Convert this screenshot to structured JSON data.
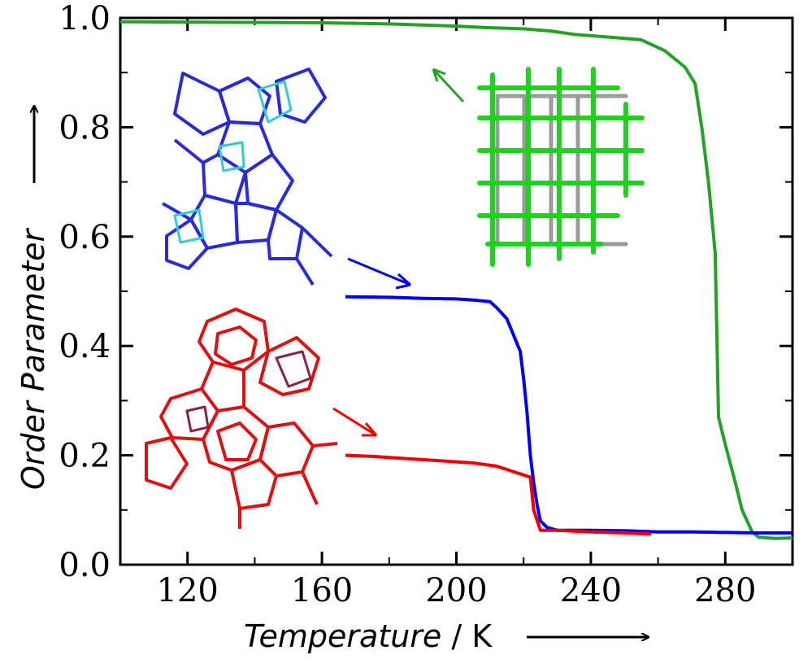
{
  "chart_data": {
    "type": "line",
    "xlabel": "Temperature / K",
    "xlabel_italic_part": "Temperature",
    "xlabel_unit_part": " / K",
    "ylabel": "Order Parameter",
    "xlim": [
      100,
      300
    ],
    "ylim": [
      0.0,
      1.0
    ],
    "x_ticks": [
      120,
      160,
      200,
      240,
      280
    ],
    "y_ticks": [
      0.0,
      0.2,
      0.4,
      0.6,
      0.8,
      1.0
    ],
    "y_tick_labels": [
      "0.0",
      "0.2",
      "0.4",
      "0.6",
      "0.8",
      "1.0"
    ],
    "grid": false,
    "series": [
      {
        "color": "#22a222",
        "points": [
          [
            100,
            0.993
          ],
          [
            130,
            0.992
          ],
          [
            160,
            0.991
          ],
          [
            180,
            0.989
          ],
          [
            200,
            0.985
          ],
          [
            210,
            0.982
          ],
          [
            220,
            0.98
          ],
          [
            228,
            0.976
          ],
          [
            235,
            0.97
          ],
          [
            245,
            0.965
          ],
          [
            255,
            0.96
          ],
          [
            262,
            0.94
          ],
          [
            268,
            0.91
          ],
          [
            271,
            0.88
          ],
          [
            273,
            0.8
          ],
          [
            275,
            0.7
          ],
          [
            277,
            0.57
          ],
          [
            278,
            0.27
          ],
          [
            280,
            0.22
          ],
          [
            283,
            0.15
          ],
          [
            285,
            0.1
          ],
          [
            288,
            0.06
          ],
          [
            290,
            0.05
          ],
          [
            295,
            0.048
          ],
          [
            300,
            0.049
          ]
        ]
      },
      {
        "color": "#0000ee",
        "points": [
          [
            167,
            0.49
          ],
          [
            180,
            0.489
          ],
          [
            190,
            0.487
          ],
          [
            200,
            0.486
          ],
          [
            205,
            0.484
          ],
          [
            210,
            0.481
          ],
          [
            212,
            0.47
          ],
          [
            215,
            0.45
          ],
          [
            217,
            0.42
          ],
          [
            219,
            0.39
          ],
          [
            220,
            0.34
          ],
          [
            221,
            0.28
          ],
          [
            222,
            0.2
          ],
          [
            223,
            0.15
          ],
          [
            224,
            0.11
          ],
          [
            225,
            0.08
          ],
          [
            227,
            0.068
          ],
          [
            230,
            0.063
          ],
          [
            240,
            0.063
          ],
          [
            250,
            0.062
          ],
          [
            260,
            0.06
          ],
          [
            270,
            0.06
          ],
          [
            280,
            0.059
          ],
          [
            290,
            0.058
          ],
          [
            300,
            0.058
          ]
        ]
      },
      {
        "color": "#ee0000",
        "points": [
          [
            167,
            0.2
          ],
          [
            175,
            0.198
          ],
          [
            185,
            0.194
          ],
          [
            195,
            0.19
          ],
          [
            205,
            0.186
          ],
          [
            212,
            0.18
          ],
          [
            216,
            0.172
          ],
          [
            222,
            0.16
          ],
          [
            223,
            0.1
          ],
          [
            225,
            0.063
          ],
          [
            230,
            0.063
          ],
          [
            240,
            0.06
          ],
          [
            250,
            0.058
          ],
          [
            258,
            0.056
          ]
        ]
      }
    ]
  },
  "annotations": {
    "arrow_color_green": "#22a222",
    "arrow_color_blue": "#0000ee",
    "arrow_color_red": "#ee0000",
    "inset_green_desc": "green-cubic-lattice-structure",
    "inset_blue_desc": "blue-molecular-structure",
    "inset_red_desc": "red-molecular-structure"
  }
}
